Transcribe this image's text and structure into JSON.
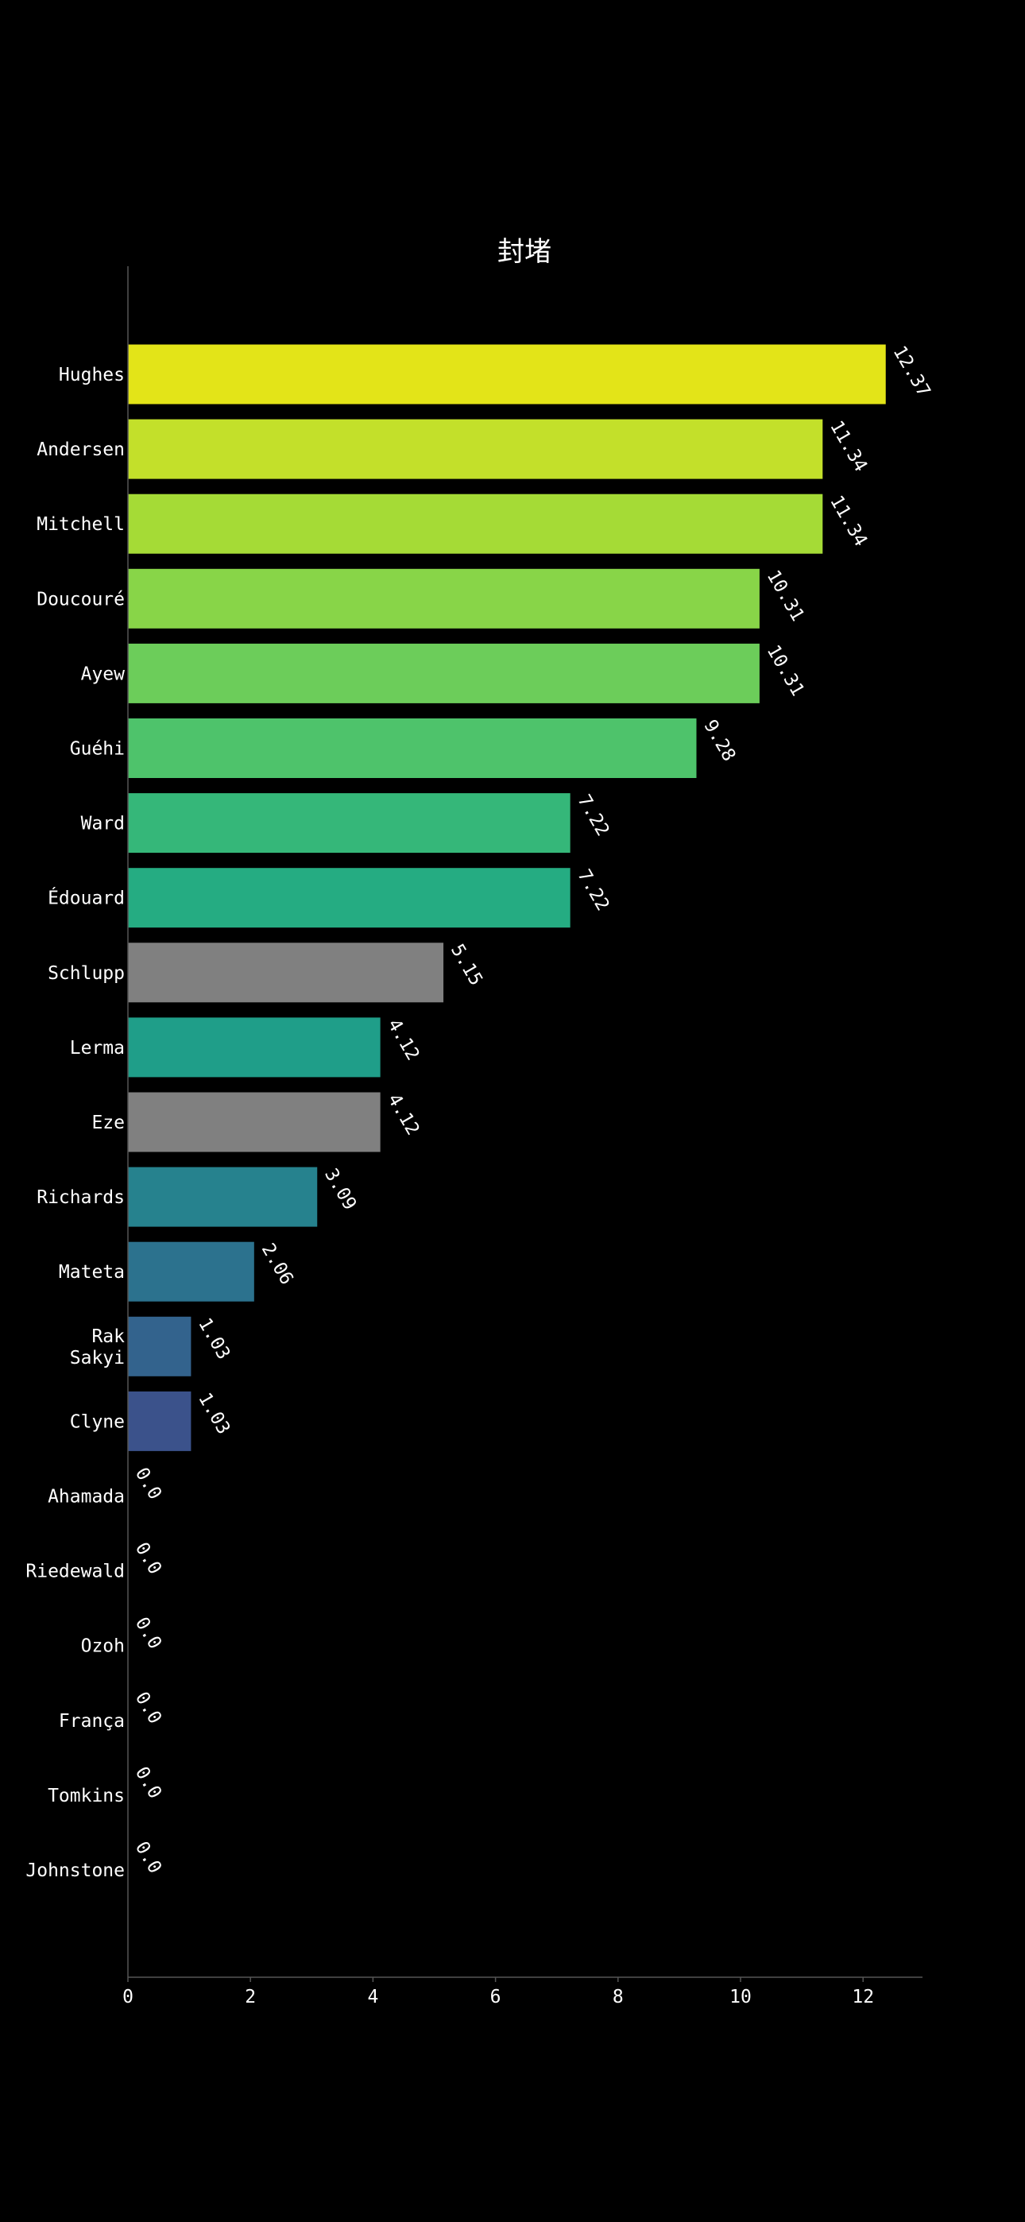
{
  "chart_data": {
    "type": "bar",
    "orientation": "horizontal",
    "title": "封堵",
    "xlabel": "",
    "ylabel": "",
    "xlim": [
      0,
      13
    ],
    "xticks": [
      0,
      2,
      4,
      6,
      8,
      10,
      12
    ],
    "grid": false,
    "legend": "none",
    "categories": [
      [
        "Hughes"
      ],
      [
        "Andersen"
      ],
      [
        "Mitchell"
      ],
      [
        "Doucouré"
      ],
      [
        "Ayew"
      ],
      [
        "Guéhi"
      ],
      [
        "Ward"
      ],
      [
        "Édouard"
      ],
      [
        "Schlupp"
      ],
      [
        "Lerma"
      ],
      [
        "Eze"
      ],
      [
        "Richards"
      ],
      [
        "Mateta"
      ],
      [
        "Rak",
        "Sakyi"
      ],
      [
        "Clyne"
      ],
      [
        "Ahamada"
      ],
      [
        "Riedewald"
      ],
      [
        "Ozoh"
      ],
      [
        "França"
      ],
      [
        "Tomkins"
      ],
      [
        "Johnstone"
      ]
    ],
    "values": [
      12.37,
      11.34,
      11.34,
      10.31,
      10.31,
      9.28,
      7.22,
      7.22,
      5.15,
      4.12,
      4.12,
      3.09,
      2.06,
      1.03,
      1.03,
      0.0,
      0.0,
      0.0,
      0.0,
      0.0,
      0.0
    ],
    "value_labels": [
      "12.37",
      "11.34",
      "11.34",
      "10.31",
      "10.31",
      "9.28",
      "7.22",
      "7.22",
      "5.15",
      "4.12",
      "4.12",
      "3.09",
      "2.06",
      "1.03",
      "1.03",
      "0.0",
      "0.0",
      "0.0",
      "0.0",
      "0.0",
      "0.0"
    ],
    "colors": [
      "#e3e418",
      "#c3e02a",
      "#a5db36",
      "#88d548",
      "#6ccd5a",
      "#4ec36b",
      "#35b779",
      "#25ac82",
      "#808080",
      "#1f9e89",
      "#808080",
      "#26828e",
      "#2c728e",
      "#33638d",
      "#3b528b",
      "#433e85",
      "#482878",
      "#481769",
      "#440154",
      "#440154",
      "#440154"
    ]
  }
}
